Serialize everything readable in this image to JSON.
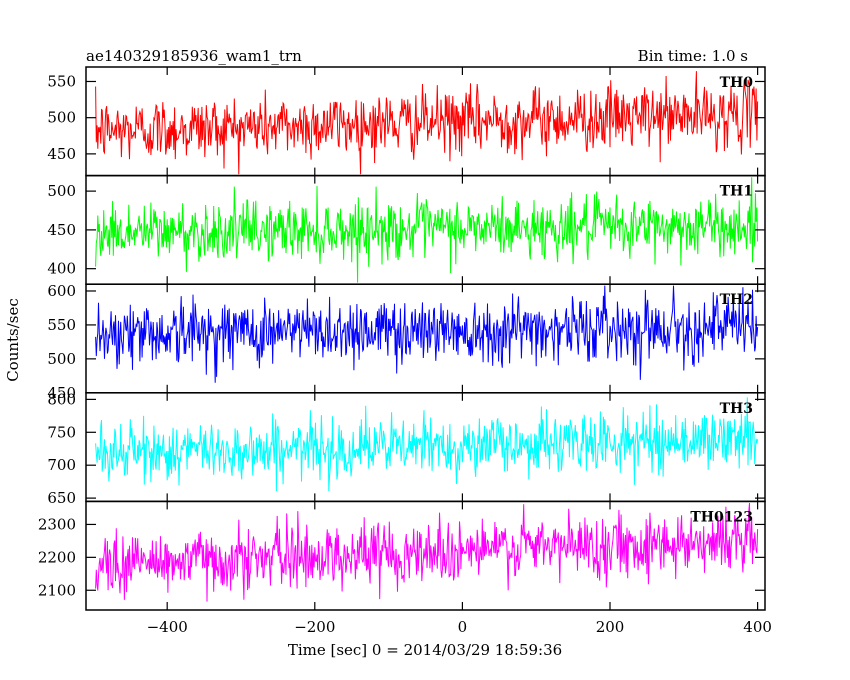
{
  "chart_data": {
    "type": "line",
    "header": {
      "left": "ae140329185936_wam1_trn",
      "right": "Bin time: 1.0 s"
    },
    "xlabel": "Time [sec] 0 = 2014/03/29 18:59:36",
    "ylabel": "Counts/sec",
    "xlim": [
      -510,
      410
    ],
    "xticks": [
      -400,
      -200,
      0,
      200,
      400
    ],
    "x_range": [
      -497,
      400
    ],
    "bin_time": 1.0,
    "panels": [
      {
        "name": "TH0",
        "color": "#ff0000",
        "ylim": [
          420,
          570
        ],
        "yticks": [
          450,
          500,
          550
        ],
        "mean_start": 482,
        "mean_end": 505,
        "spread": 22,
        "min": 422,
        "max": 568
      },
      {
        "name": "TH1",
        "color": "#00ff00",
        "ylim": [
          380,
          520
        ],
        "yticks": [
          400,
          450,
          500
        ],
        "mean_start": 447,
        "mean_end": 455,
        "spread": 19,
        "min": 382,
        "max": 518
      },
      {
        "name": "TH2",
        "color": "#0000ff",
        "ylim": [
          450,
          610
        ],
        "yticks": [
          450,
          500,
          550,
          600
        ],
        "mean_start": 538,
        "mean_end": 548,
        "spread": 24,
        "min": 452,
        "max": 608
      },
      {
        "name": "TH3",
        "color": "#00ffff",
        "ylim": [
          645,
          810
        ],
        "yticks": [
          650,
          700,
          750,
          800
        ],
        "mean_start": 718,
        "mean_end": 740,
        "spread": 22,
        "min": 647,
        "max": 808
      },
      {
        "name": "TH0123",
        "color": "#ff00ff",
        "ylim": [
          2040,
          2370
        ],
        "yticks": [
          2100,
          2200,
          2300
        ],
        "mean_start": 2180,
        "mean_end": 2255,
        "spread": 48,
        "min": 2042,
        "max": 2365
      }
    ]
  }
}
